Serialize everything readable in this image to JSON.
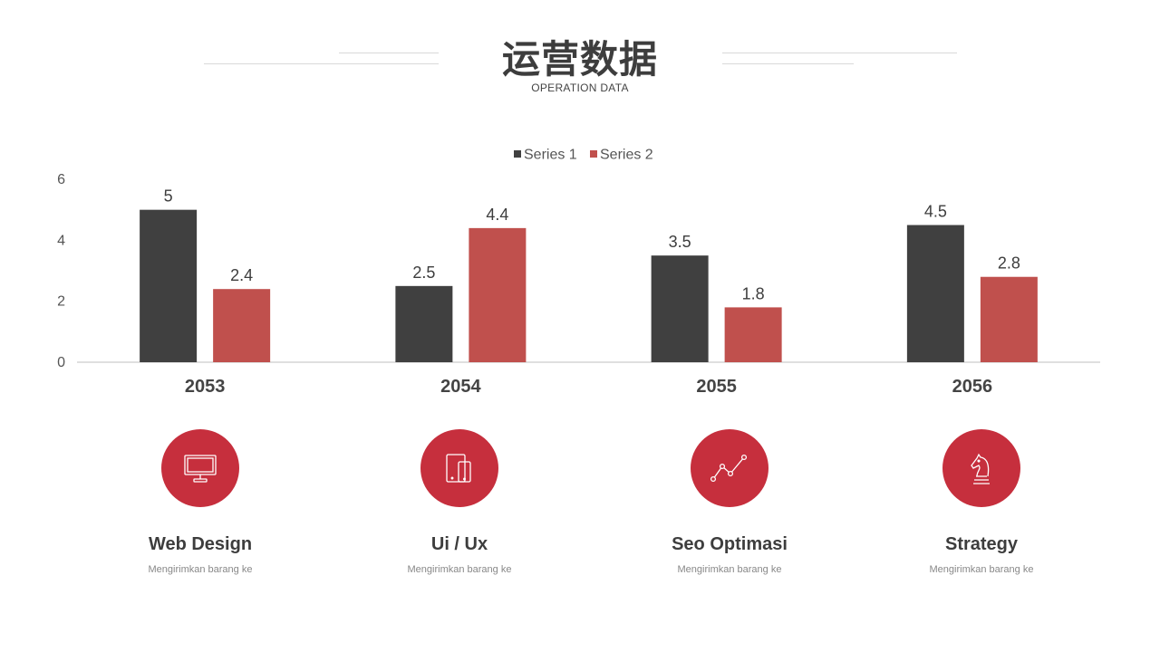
{
  "header": {
    "title": "运营数据",
    "subtitle": "OPERATION DATA"
  },
  "colors": {
    "series1": "#404040",
    "series2": "#c0504d",
    "accent": "#c62f3d"
  },
  "chart_data": {
    "type": "bar",
    "categories": [
      "2053",
      "2054",
      "2055",
      "2056"
    ],
    "series": [
      {
        "name": "Series 1",
        "values": [
          5,
          2.5,
          3.5,
          4.5
        ]
      },
      {
        "name": "Series 2",
        "values": [
          2.4,
          4.4,
          1.8,
          2.8
        ]
      }
    ],
    "ylim": [
      0,
      6
    ],
    "yticks": [
      0,
      2,
      4,
      6
    ],
    "legend": "top-center",
    "grid": false,
    "data_labels": true
  },
  "features": [
    {
      "icon": "monitor-icon",
      "title": "Web Design",
      "desc": "Mengirimkan barang ke"
    },
    {
      "icon": "devices-icon",
      "title": "Ui / Ux",
      "desc": "Mengirimkan barang ke"
    },
    {
      "icon": "line-chart-icon",
      "title": "Seo Optimasi",
      "desc": "Mengirimkan barang ke"
    },
    {
      "icon": "chess-knight-icon",
      "title": "Strategy",
      "desc": "Mengirimkan barang ke"
    }
  ]
}
